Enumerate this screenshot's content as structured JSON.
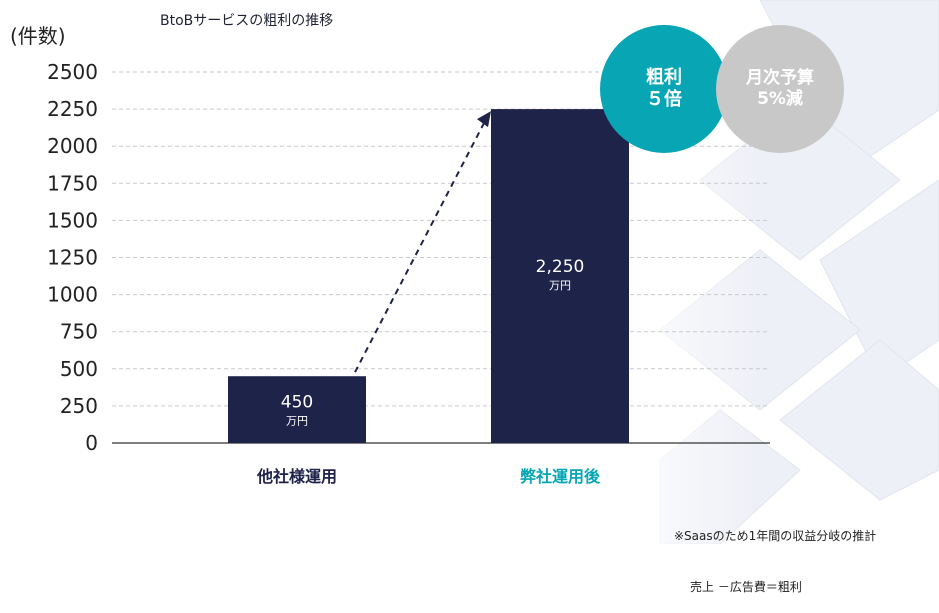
{
  "title": "BtoBサービスの粗利の推移",
  "y_unit": "(件数)",
  "colors": {
    "bar": "#1e2349",
    "accent": "#08a6b4",
    "badge_gray": "#c8c8c8",
    "grid": "#c9c9c9"
  },
  "badges": [
    {
      "line1": "粗利",
      "line2": "５倍"
    },
    {
      "line1": "月次予算",
      "line2": "5%減"
    }
  ],
  "footnote": {
    "line1": "※Saasのため1年間の収益分岐の推計",
    "line2": "売上 －広告費＝粗利"
  },
  "chart_data": {
    "type": "bar",
    "categories": [
      "他社様運用",
      "弊社運用後"
    ],
    "values": [
      450,
      2250
    ],
    "data_labels": [
      {
        "value": "450",
        "unit": "万円"
      },
      {
        "value": "2,250",
        "unit": "万円"
      }
    ],
    "ylabel": "(件数)",
    "ylim": [
      0,
      2500
    ],
    "yticks": [
      0,
      250,
      500,
      750,
      1000,
      1250,
      1500,
      1750,
      2000,
      2250,
      2500
    ],
    "grid": true,
    "annotation": "dashed arrow from first bar to second bar"
  }
}
